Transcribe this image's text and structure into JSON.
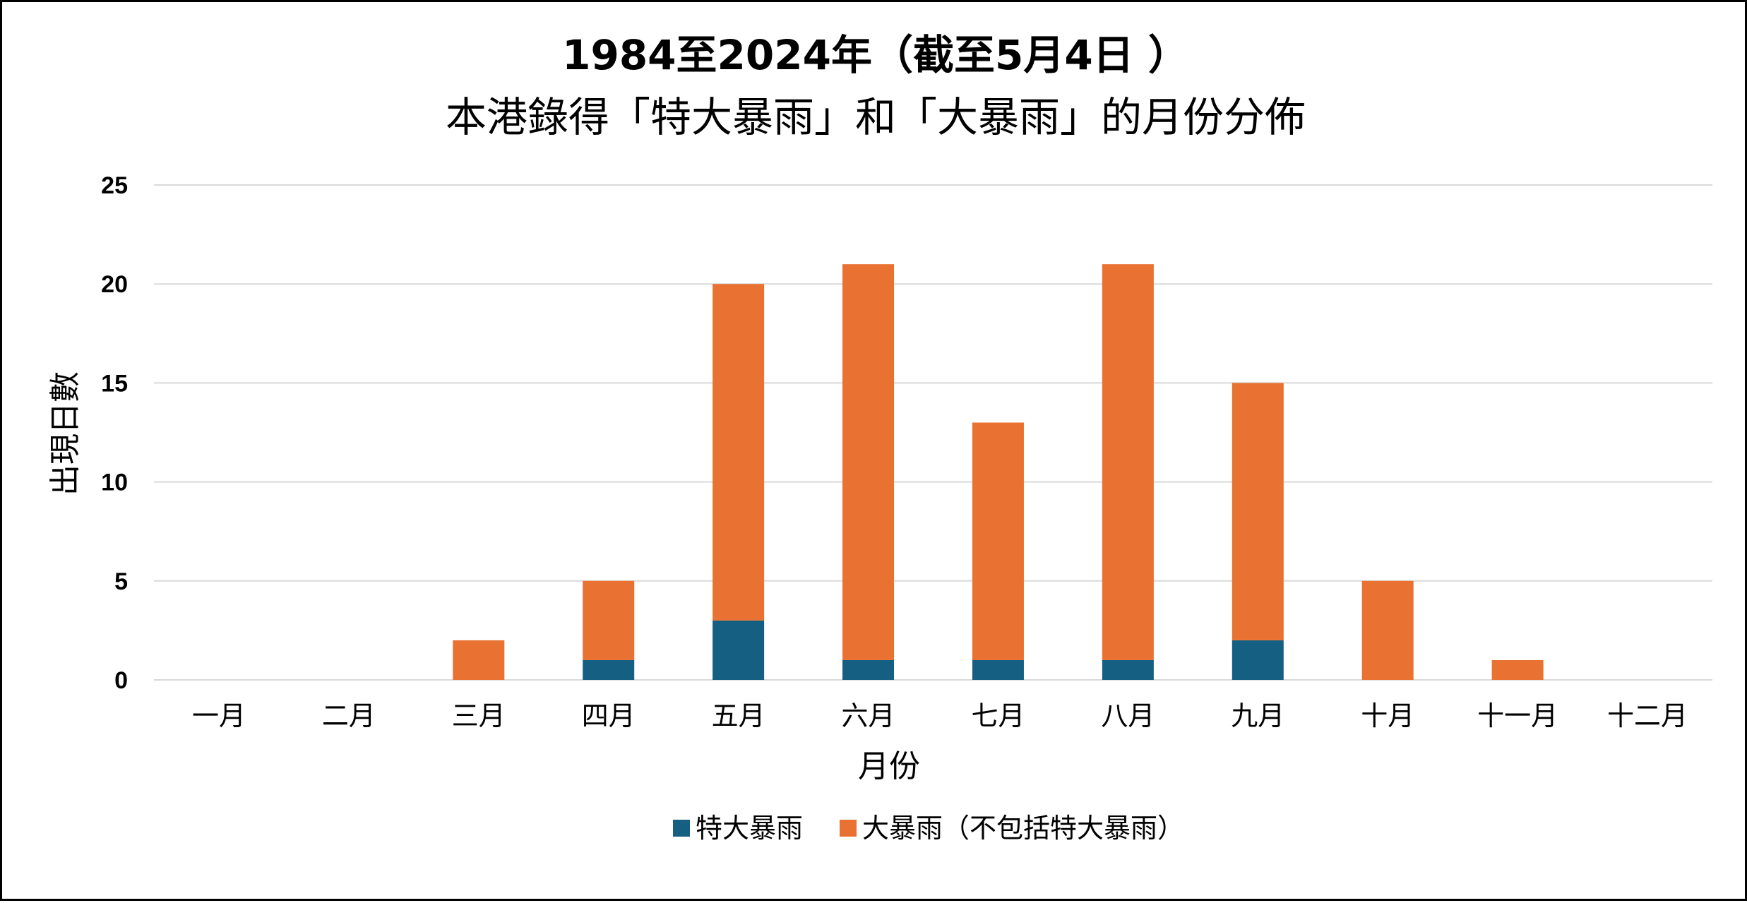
{
  "chart_data": {
    "type": "bar",
    "stacked": true,
    "title_line1": "1984至2024年（截至5月4日 ）",
    "title_line2": "本港錄得「特大暴雨」和「大暴雨」的月份分佈",
    "xlabel": "月份",
    "ylabel": "出現日數",
    "ylim": [
      0,
      25
    ],
    "yticks": [
      0,
      5,
      10,
      15,
      20,
      25
    ],
    "grid": true,
    "legend_position": "bottom",
    "categories": [
      "一月",
      "二月",
      "三月",
      "四月",
      "五月",
      "六月",
      "七月",
      "八月",
      "九月",
      "十月",
      "十一月",
      "十二月"
    ],
    "series": [
      {
        "name": "特大暴雨",
        "color": "#156082",
        "values": [
          0,
          0,
          0,
          1,
          3,
          1,
          1,
          1,
          2,
          0,
          0,
          0
        ]
      },
      {
        "name": "大暴雨（不包括特大暴雨）",
        "color": "#E97132",
        "values": [
          0,
          0,
          2,
          4,
          17,
          20,
          12,
          20,
          13,
          5,
          1,
          0
        ]
      }
    ]
  }
}
